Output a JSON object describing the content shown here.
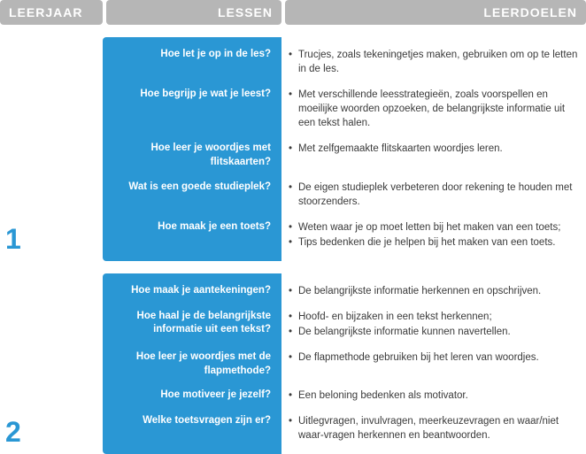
{
  "header": {
    "col1": "LEERJAAR",
    "col2": "LESSEN",
    "col3": "LEERDOELEN"
  },
  "colors": {
    "header_bg": "#b6b6b6",
    "accent": "#2a97d4",
    "text": "#3a3a3a",
    "white": "#ffffff"
  },
  "years": [
    {
      "num": "1",
      "rows": [
        {
          "lesson": "Hoe let je op in de les?",
          "goals": [
            "Trucjes, zoals tekeningetjes maken, gebruiken om op te letten in de les."
          ]
        },
        {
          "lesson": "Hoe begrijp je wat je leest?",
          "goals": [
            "Met verschillende leesstrategieën, zoals voorspellen en moeilijke woorden opzoeken, de belangrijkste informatie uit een tekst halen."
          ]
        },
        {
          "lesson": "Hoe leer je woordjes met flitskaarten?",
          "goals": [
            "Met zelfgemaakte flitskaarten woordjes leren."
          ]
        },
        {
          "lesson": "Wat is een goede studieplek?",
          "goals": [
            "De eigen studieplek verbeteren door rekening te houden met stoorzenders."
          ]
        },
        {
          "lesson": "Hoe maak je een toets?",
          "goals": [
            "Weten waar je op moet letten bij het maken van een toets;",
            "Tips bedenken die je helpen bij het maken van een toets."
          ]
        }
      ]
    },
    {
      "num": "2",
      "rows": [
        {
          "lesson": "Hoe maak je aantekeningen?",
          "goals": [
            "De belangrijkste informatie herkennen en opschrijven."
          ]
        },
        {
          "lesson": "Hoe haal je de belangrijkste informatie uit een tekst?",
          "goals": [
            "Hoofd- en bijzaken in een tekst herkennen;",
            "De belangrijkste informatie kunnen navertellen."
          ]
        },
        {
          "lesson": "Hoe leer je woordjes met de flapmethode?",
          "goals": [
            "De flapmethode gebruiken bij het leren van woordjes."
          ]
        },
        {
          "lesson": "Hoe motiveer je jezelf?",
          "goals": [
            "Een beloning bedenken als motivator."
          ]
        },
        {
          "lesson": "Welke toetsvragen zijn er?",
          "goals": [
            "Uitlegvragen, invulvragen, meerkeuzevragen en waar/niet waar-vragen herkennen en beantwoorden."
          ]
        }
      ]
    }
  ]
}
